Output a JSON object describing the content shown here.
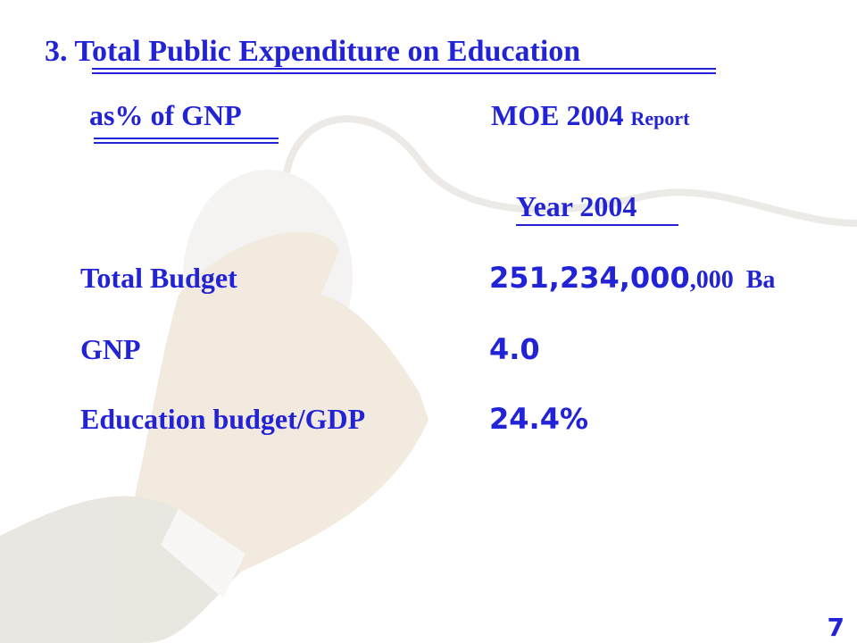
{
  "slide": {
    "title": "3. Total Public Expenditure on Education",
    "subtitle": "as% of GNP",
    "source": "MOE 2004",
    "source_suffix": "Report",
    "year_header": "Year 2004",
    "rows": [
      {
        "label": "Total Budget",
        "value": "251,234,000",
        "value_suffix": ",000  Ba"
      },
      {
        "label": "GNP",
        "value": "4.0"
      },
      {
        "label": "Education budget/GDP",
        "value": "24.4%"
      }
    ],
    "page_number": "7"
  }
}
